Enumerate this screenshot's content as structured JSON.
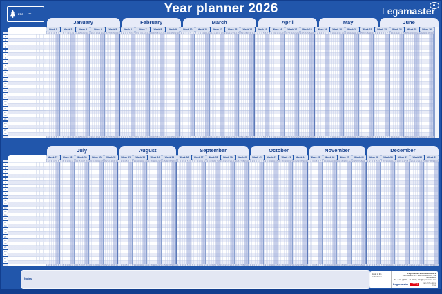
{
  "title": "Year planner 2026",
  "brand": {
    "logo_light": "Lega",
    "logo_bold": "master"
  },
  "fsc": {
    "label": "FSC",
    "mix": "MIX"
  },
  "week_label_prefix": "Week",
  "halves": [
    {
      "rows": 28,
      "months": [
        {
          "name": "January",
          "weeks": [
            1,
            2,
            3,
            4,
            5
          ],
          "days": 31
        },
        {
          "name": "February",
          "weeks": [
            6,
            7,
            8,
            9
          ],
          "days": 28
        },
        {
          "name": "March",
          "weeks": [
            10,
            11,
            12,
            13,
            14
          ],
          "days": 31
        },
        {
          "name": "April",
          "weeks": [
            15,
            16,
            17,
            18
          ],
          "days": 30
        },
        {
          "name": "May",
          "weeks": [
            19,
            20,
            21,
            22
          ],
          "days": 31
        },
        {
          "name": "June",
          "weeks": [
            23,
            24,
            25,
            26
          ],
          "days": 30
        }
      ]
    },
    {
      "rows": 28,
      "months": [
        {
          "name": "July",
          "weeks": [
            27,
            28,
            29,
            30,
            31
          ],
          "days": 31
        },
        {
          "name": "August",
          "weeks": [
            32,
            33,
            34,
            35
          ],
          "days": 31
        },
        {
          "name": "September",
          "weeks": [
            36,
            37,
            38,
            39,
            40
          ],
          "days": 30
        },
        {
          "name": "October",
          "weeks": [
            41,
            42,
            43,
            44
          ],
          "days": 31
        },
        {
          "name": "November",
          "weeks": [
            45,
            46,
            47,
            48
          ],
          "days": 30
        },
        {
          "name": "December",
          "weeks": [
            49,
            50,
            51,
            52,
            53
          ],
          "days": 31
        }
      ]
    }
  ],
  "notes_label": "Notes",
  "footer": {
    "made_in": "Made in the Netherlands",
    "company": "Legamaster International B.V.",
    "address": "Kwinkweerd 62, 7241 CW Lochem, The Netherlands",
    "contact": "Tel.: +31 (0)573 - 71 30 00, info@legamaster.com",
    "brand": "Legamaster",
    "edding": "edding",
    "tagline": "part of the edding group"
  }
}
